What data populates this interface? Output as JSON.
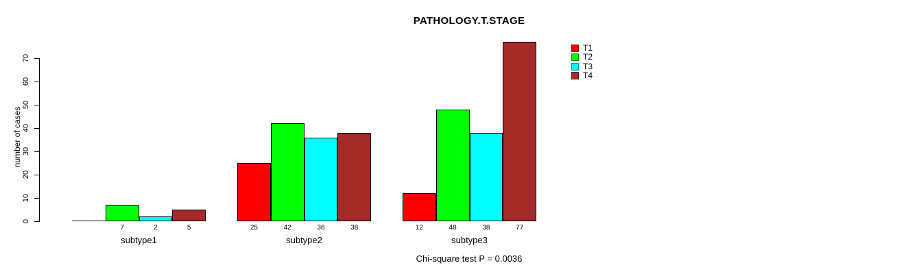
{
  "window": {
    "background": "#FFFFFF"
  },
  "chart_data": {
    "type": "bar",
    "title": "PATHOLOGY.T.STAGE",
    "ylabel": "number of cases",
    "xlabel": "",
    "annotation": "Chi-square test P = 0.0036",
    "categories": [
      "subtype1",
      "subtype2",
      "subtype3"
    ],
    "series": [
      {
        "name": "T1",
        "color": "#FF0000",
        "values": [
          0,
          25,
          12
        ]
      },
      {
        "name": "T2",
        "color": "#00FF00",
        "values": [
          7,
          42,
          48
        ]
      },
      {
        "name": "T3",
        "color": "#00FFFF",
        "values": [
          2,
          36,
          38
        ]
      },
      {
        "name": "T4",
        "color": "#A52A2A",
        "values": [
          5,
          38,
          77
        ]
      }
    ],
    "ylim": [
      0,
      70
    ],
    "yticks": [
      0,
      10,
      20,
      30,
      40,
      50,
      60,
      70
    ],
    "bar_value_labels": {
      "subtype1": [
        null,
        7,
        2,
        5
      ],
      "subtype2": [
        25,
        42,
        36,
        38
      ],
      "subtype3": [
        12,
        48,
        38,
        77
      ]
    },
    "legend": {
      "position": "right",
      "entries": [
        "T1",
        "T2",
        "T3",
        "T4"
      ]
    },
    "grid": false,
    "axis_color": "#000000",
    "text_color": "#000000"
  }
}
